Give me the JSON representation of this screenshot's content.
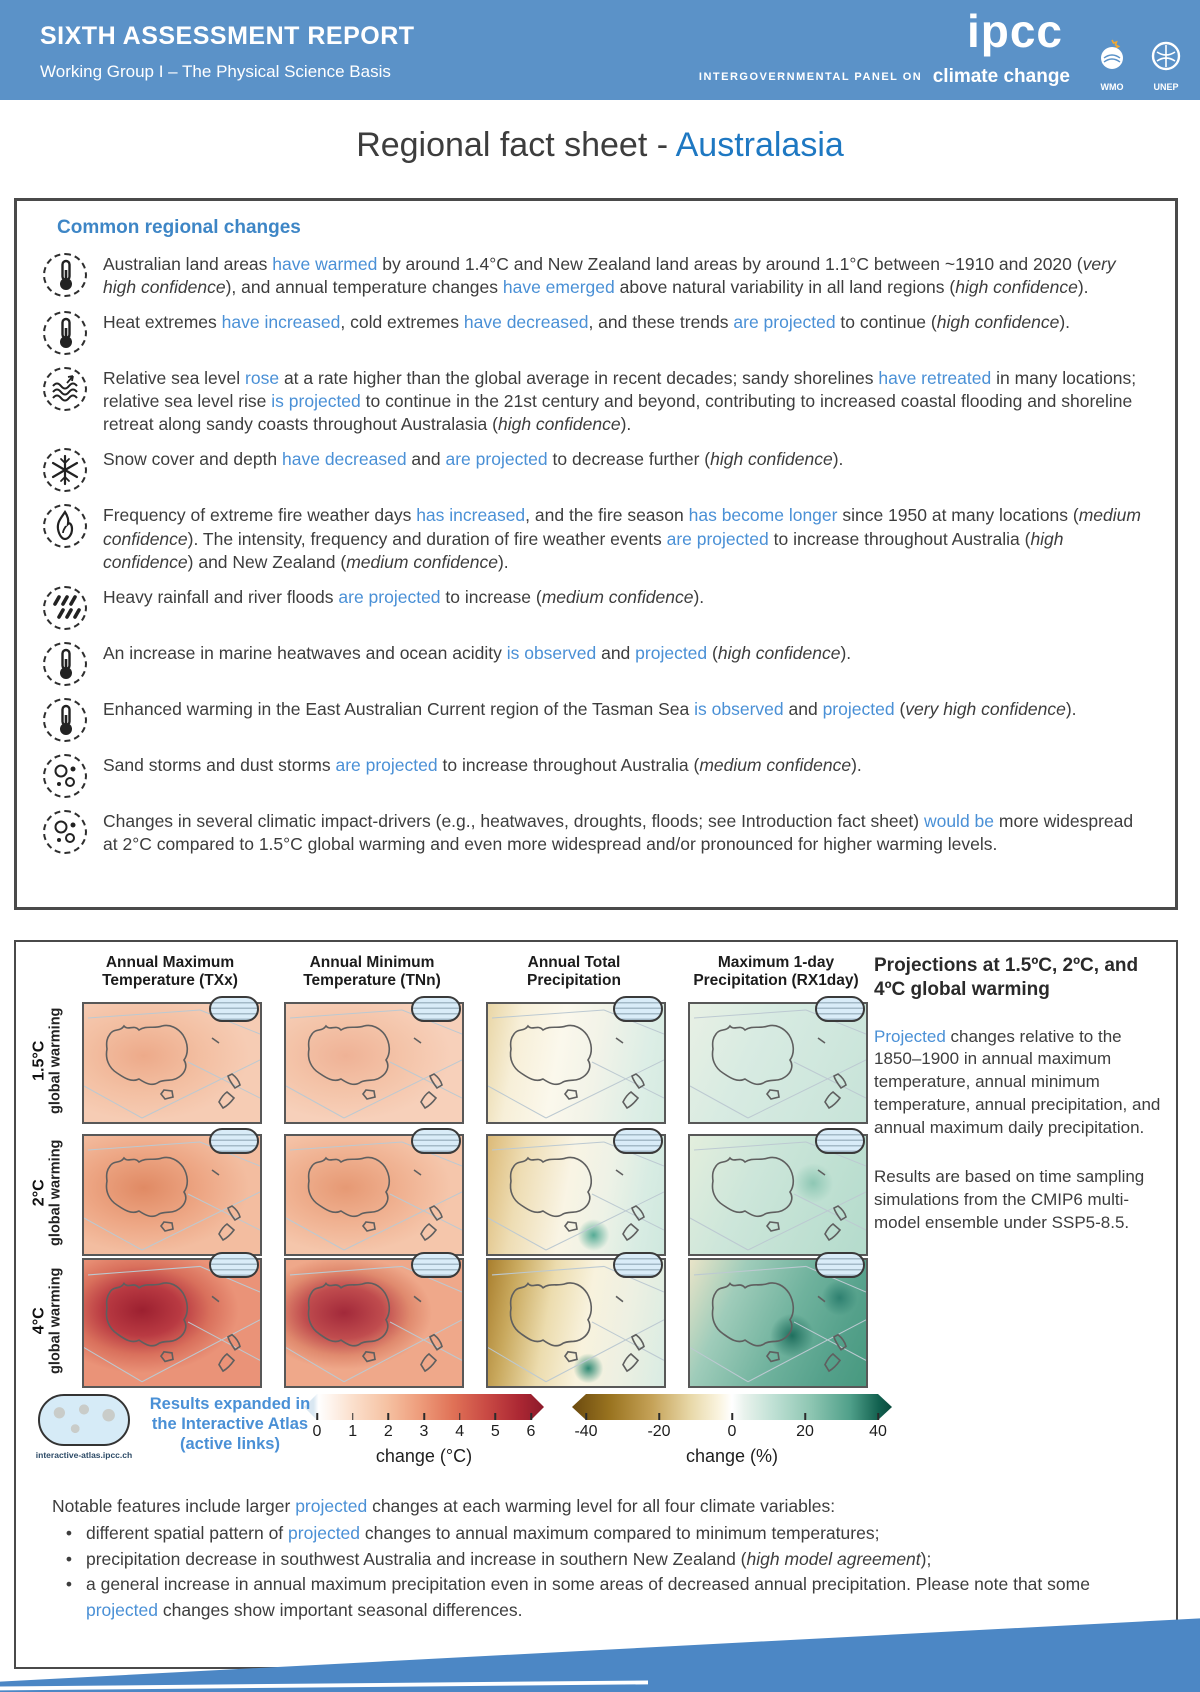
{
  "colors": {
    "header_blue": "#5b92c8",
    "title_blue": "#1e78c2",
    "link_blue": "#4a90d6",
    "heading_blue": "#3e86c6",
    "footer_blue": "#4c87c5"
  },
  "header": {
    "report": "SIXTH ASSESSMENT REPORT",
    "subtitle": "Working Group I – The Physical Science Basis",
    "ipcc_logo": "ipcc",
    "tagline_small": "INTERGOVERNMENTAL PANEL ON",
    "tagline_big": "climate change",
    "wmo_label": "WMO",
    "unep_label": "UNEP"
  },
  "title": {
    "prefix": "Regional fact sheet -",
    "region": "Australasia"
  },
  "common": {
    "heading": "Common regional changes",
    "items": [
      {
        "icon": "thermometer-icon",
        "segments": [
          {
            "t": "Australian land areas "
          },
          {
            "t": "have warmed",
            "s": "b"
          },
          {
            "t": " by around 1.4°C and New Zealand land areas by around 1.1°C between ~1910 and 2020 ("
          },
          {
            "t": "very high confidence",
            "s": "i"
          },
          {
            "t": "), and annual temperature changes "
          },
          {
            "t": "have emerged",
            "s": "b"
          },
          {
            "t": " above natural variability in all land regions ("
          },
          {
            "t": "high confidence",
            "s": "i"
          },
          {
            "t": ")."
          }
        ]
      },
      {
        "icon": "thermometer-icon",
        "segments": [
          {
            "t": "Heat extremes "
          },
          {
            "t": "have increased",
            "s": "b"
          },
          {
            "t": ", cold extremes "
          },
          {
            "t": "have decreased",
            "s": "b"
          },
          {
            "t": ", and these trends "
          },
          {
            "t": "are projected",
            "s": "b"
          },
          {
            "t": " to continue ("
          },
          {
            "t": "high confidence",
            "s": "i"
          },
          {
            "t": ")."
          }
        ]
      },
      {
        "icon": "sea-level-icon",
        "segments": [
          {
            "t": "Relative sea level "
          },
          {
            "t": "rose",
            "s": "b"
          },
          {
            "t": " at a rate higher than the global average in recent decades; sandy shorelines "
          },
          {
            "t": "have retreated",
            "s": "b"
          },
          {
            "t": " in many locations; relative sea level rise "
          },
          {
            "t": "is projected",
            "s": "b"
          },
          {
            "t": " to continue in the 21st century and beyond, contributing to increased coastal flooding and shoreline retreat along sandy coasts throughout Australasia ("
          },
          {
            "t": "high confidence",
            "s": "i"
          },
          {
            "t": ")."
          }
        ]
      },
      {
        "icon": "snowflake-icon",
        "segments": [
          {
            "t": "Snow cover and depth "
          },
          {
            "t": "have decreased",
            "s": "b"
          },
          {
            "t": " and "
          },
          {
            "t": "are projected",
            "s": "b"
          },
          {
            "t": " to decrease further ("
          },
          {
            "t": "high confidence",
            "s": "i"
          },
          {
            "t": ")."
          }
        ]
      },
      {
        "icon": "fire-icon",
        "segments": [
          {
            "t": "Frequency of extreme fire weather days "
          },
          {
            "t": "has increased",
            "s": "b"
          },
          {
            "t": ", and the fire season "
          },
          {
            "t": "has become longer",
            "s": "b"
          },
          {
            "t": " since 1950 at many locations ("
          },
          {
            "t": "medium confidence",
            "s": "i"
          },
          {
            "t": "). The intensity, frequency and duration of fire weather events "
          },
          {
            "t": "are projected",
            "s": "b"
          },
          {
            "t": " to increase throughout Australia ("
          },
          {
            "t": "high confidence",
            "s": "i"
          },
          {
            "t": ") and New Zealand ("
          },
          {
            "t": "medium confidence",
            "s": "i"
          },
          {
            "t": ")."
          }
        ]
      },
      {
        "icon": "heavy-rain-icon",
        "segments": [
          {
            "t": "Heavy rainfall and river floods "
          },
          {
            "t": "are projected",
            "s": "b"
          },
          {
            "t": " to increase ("
          },
          {
            "t": "medium confidence",
            "s": "i"
          },
          {
            "t": ")."
          }
        ]
      },
      {
        "icon": "thermometer-icon",
        "segments": [
          {
            "t": "An increase in marine heatwaves and ocean acidity "
          },
          {
            "t": "is observed",
            "s": "b"
          },
          {
            "t": " and "
          },
          {
            "t": "projected",
            "s": "b"
          },
          {
            "t": " ("
          },
          {
            "t": "high confidence",
            "s": "i"
          },
          {
            "t": ")."
          }
        ]
      },
      {
        "icon": "thermometer-icon",
        "segments": [
          {
            "t": "Enhanced warming in the East Australian Current region of the Tasman Sea "
          },
          {
            "t": "is observed",
            "s": "b"
          },
          {
            "t": " and "
          },
          {
            "t": "projected",
            "s": "b"
          },
          {
            "t": " ("
          },
          {
            "t": "very high confidence",
            "s": "i"
          },
          {
            "t": ")."
          }
        ]
      },
      {
        "icon": "dust-storm-icon",
        "segments": [
          {
            "t": "Sand storms and dust storms "
          },
          {
            "t": "are projected",
            "s": "b"
          },
          {
            "t": " to increase throughout Australia ("
          },
          {
            "t": "medium confidence",
            "s": "i"
          },
          {
            "t": ")."
          }
        ]
      },
      {
        "icon": "impact-drivers-icon",
        "segments": [
          {
            "t": "Changes in several climatic impact-drivers (e.g., heatwaves, droughts, floods; see Introduction fact sheet) "
          },
          {
            "t": "would be",
            "s": "b"
          },
          {
            "t": " more widespread at 2°C compared to 1.5°C global warming and even more widespread and/or pronounced for higher warming levels."
          }
        ]
      }
    ]
  },
  "maps": {
    "columns": [
      "Annual Maximum Temperature (TXx)",
      "Annual Minimum Temperature (TNn)",
      "Annual Total Precipitation",
      "Maximum 1-day Precipitation (RX1day)"
    ],
    "rows": [
      {
        "level": "1.5°C",
        "label": "global warming"
      },
      {
        "level": "2°C",
        "label": "global warming"
      },
      {
        "level": "4°C",
        "label": "global warming"
      }
    ],
    "sidebar": {
      "heading": "Projections at 1.5ºC, 2ºC, and 4ºC global warming",
      "para1_segments": [
        {
          "t": "Projected",
          "s": "b"
        },
        {
          "t": " changes relative to the 1850–1900 in annual maximum temperature, annual minimum temperature, annual precipitation, and annual maximum daily precipitation."
        }
      ],
      "para2": "Results are based on time sampling simulations from the CMIP6 multi-model ensemble under SSP5-8.5."
    },
    "colorbar_c": {
      "label": "change (°C)",
      "ticks": [
        "0",
        "1",
        "2",
        "3",
        "4",
        "5",
        "6"
      ]
    },
    "colorbar_pct": {
      "label": "change (%)",
      "ticks": [
        "-40",
        "-20",
        "0",
        "20",
        "40"
      ]
    },
    "atlas": {
      "note": "Results expanded in the Interactive Atlas (active links)",
      "caption": "interactive-atlas.ipcc.ch"
    }
  },
  "notable": {
    "intro_segments": [
      {
        "t": "Notable features include larger "
      },
      {
        "t": "projected",
        "s": "b"
      },
      {
        "t": " changes at each warming level for all four climate variables:"
      }
    ],
    "bullet_char": "•",
    "bullets": [
      {
        "segments": [
          {
            "t": "different spatial pattern of "
          },
          {
            "t": "projected",
            "s": "b"
          },
          {
            "t": " changes to annual maximum compared to minimum temperatures;"
          }
        ]
      },
      {
        "segments": [
          {
            "t": "precipitation decrease in southwest Australia and increase in southern New Zealand ("
          },
          {
            "t": "high model agreement",
            "s": "i"
          },
          {
            "t": ");"
          }
        ]
      },
      {
        "segments": [
          {
            "t": "a general increase in annual maximum precipitation even in some areas of decreased annual precipitation. Please note that some "
          },
          {
            "t": "projected",
            "s": "b"
          },
          {
            "t": " changes show important seasonal differences."
          }
        ]
      }
    ]
  }
}
